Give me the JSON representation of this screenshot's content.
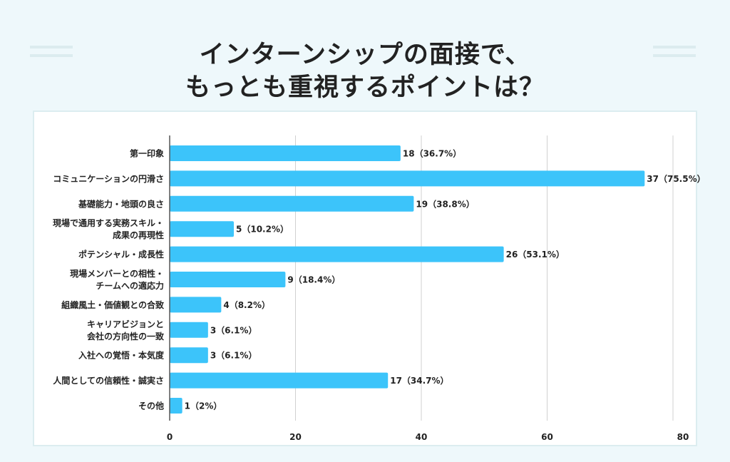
{
  "title_lines": [
    "インターンシップの面接で、",
    "もっとも重視するポイントは？"
  ],
  "colors": {
    "bar": "#3cc4fa",
    "background": "#eef8fb",
    "grid": "#d0d0d0",
    "axis": "#555555",
    "text": "#222222"
  },
  "chart_data": {
    "type": "bar",
    "orientation": "horizontal",
    "title": "インターンシップの面接で、もっとも重視するポイントは？",
    "categories": [
      [
        "第一印象"
      ],
      [
        "コミュニケーションの円滑さ"
      ],
      [
        "基礎能力・地頭の良さ"
      ],
      [
        "現場で通用する実務スキル・",
        "成果の再現性"
      ],
      [
        "ポテンシャル・成長性"
      ],
      [
        "現場メンバーとの相性・",
        "チームへの適応力"
      ],
      [
        "組織風土・価値観との合致"
      ],
      [
        "キャリアビジョンと",
        "会社の方向性の一致"
      ],
      [
        "入社への覚悟・本気度"
      ],
      [
        "人間としての信頼性・誠実さ"
      ],
      [
        "その他"
      ]
    ],
    "counts": [
      18,
      37,
      19,
      5,
      26,
      9,
      4,
      3,
      3,
      17,
      1
    ],
    "percents": [
      36.7,
      75.5,
      38.8,
      10.2,
      53.1,
      18.4,
      8.2,
      6.1,
      6.1,
      34.7,
      2
    ],
    "data_labels": [
      "18（36.7%）",
      "37（75.5%）",
      "19（38.8%）",
      "5（10.2%）",
      "26（53.1%）",
      "9（18.4%）",
      "4（8.2%）",
      "3（6.1%）",
      "3（6.1%）",
      "17（34.7%）",
      "1（2%）"
    ],
    "xlim": [
      0,
      80
    ],
    "xticks": [
      "0",
      "20",
      "40",
      "60",
      "80"
    ],
    "grid": true,
    "legend": "none"
  }
}
